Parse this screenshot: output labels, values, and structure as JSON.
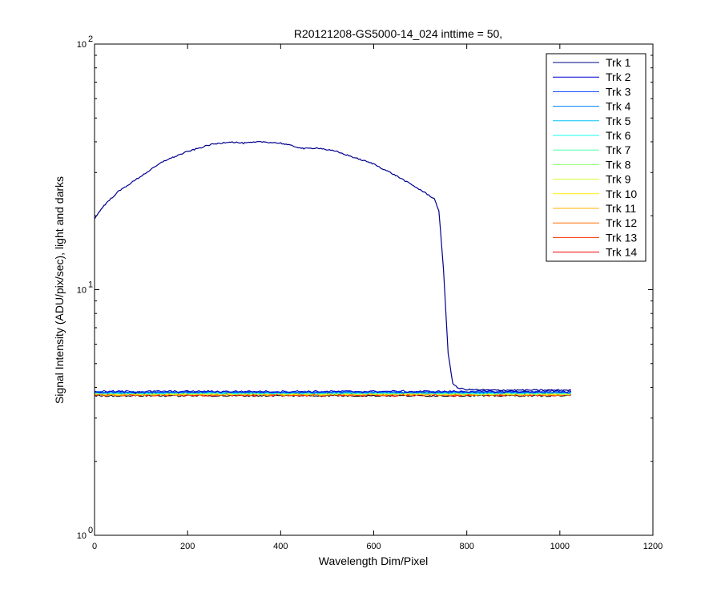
{
  "chart_data": {
    "type": "line",
    "title": "R20121208-GS5000-14_024 inttime = 50,",
    "xlabel": "Wavelength Dim/Pixel",
    "ylabel": "Signal Intensity (ADU/pix/sec), light and darks",
    "xlim": [
      0,
      1200
    ],
    "ylim": [
      1,
      100
    ],
    "yscale": "log",
    "xticks": [
      0,
      200,
      400,
      600,
      800,
      1000,
      1200
    ],
    "xtick_labels": [
      "0",
      "200",
      "400",
      "600",
      "800",
      "1000",
      "1200"
    ],
    "yticks": [
      1,
      10,
      100
    ],
    "ytick_labels": [
      {
        "base": "10",
        "exp": "0"
      },
      {
        "base": "10",
        "exp": "1"
      },
      {
        "base": "10",
        "exp": "2"
      }
    ],
    "grid": false,
    "legend_position": "top-right",
    "series": [
      {
        "name": "Trk 1",
        "color": "#00008F",
        "x": [
          0,
          20,
          50,
          100,
          150,
          200,
          250,
          290,
          320,
          360,
          400,
          450,
          480,
          520,
          600,
          650,
          700,
          730,
          740,
          750,
          760,
          770,
          780,
          800,
          850,
          900,
          950,
          1000,
          1024
        ],
        "y": [
          19.5,
          22,
          25,
          29,
          33.5,
          36.5,
          39,
          40,
          39.5,
          40,
          39.5,
          37.5,
          37.8,
          36.5,
          32.5,
          29,
          25.5,
          23.5,
          21,
          12,
          5.5,
          4.15,
          3.98,
          3.92,
          3.9,
          3.9,
          3.9,
          3.9,
          3.9
        ]
      },
      {
        "name": "Trk 2",
        "color": "#0000D0",
        "x": [
          0,
          1024
        ],
        "y": [
          3.85,
          3.85
        ]
      },
      {
        "name": "Trk 3",
        "color": "#0040FF",
        "x": [
          0,
          1024
        ],
        "y": [
          3.83,
          3.83
        ]
      },
      {
        "name": "Trk 4",
        "color": "#0080FF",
        "x": [
          0,
          1024
        ],
        "y": [
          3.82,
          3.82
        ]
      },
      {
        "name": "Trk 5",
        "color": "#00C0FF",
        "x": [
          0,
          1024
        ],
        "y": [
          3.81,
          3.81
        ]
      },
      {
        "name": "Trk 6",
        "color": "#10FFEF",
        "x": [
          0,
          1024
        ],
        "y": [
          3.8,
          3.8
        ]
      },
      {
        "name": "Trk 7",
        "color": "#50FFAF",
        "x": [
          0,
          1024
        ],
        "y": [
          3.79,
          3.79
        ]
      },
      {
        "name": "Trk 8",
        "color": "#8FFF70",
        "x": [
          0,
          1024
        ],
        "y": [
          3.78,
          3.78
        ]
      },
      {
        "name": "Trk 9",
        "color": "#CFFF30",
        "x": [
          0,
          1024
        ],
        "y": [
          3.77,
          3.77
        ]
      },
      {
        "name": "Trk 10",
        "color": "#FFEF00",
        "x": [
          0,
          1024
        ],
        "y": [
          3.76,
          3.76
        ]
      },
      {
        "name": "Trk 11",
        "color": "#FFAF00",
        "x": [
          0,
          1024
        ],
        "y": [
          3.75,
          3.75
        ]
      },
      {
        "name": "Trk 12",
        "color": "#FF7000",
        "x": [
          0,
          1024
        ],
        "y": [
          3.74,
          3.74
        ]
      },
      {
        "name": "Trk 13",
        "color": "#FF3000",
        "x": [
          0,
          1024
        ],
        "y": [
          3.73,
          3.73
        ]
      },
      {
        "name": "Trk 14",
        "color": "#EF0000",
        "x": [
          0,
          1024
        ],
        "y": [
          3.72,
          3.72
        ]
      }
    ]
  }
}
